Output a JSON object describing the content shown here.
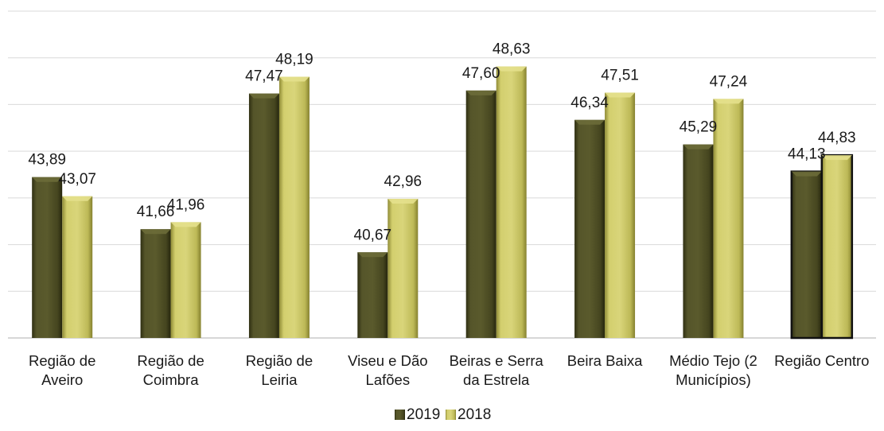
{
  "chart_data": {
    "type": "bar",
    "categories": [
      [
        "Região de",
        "Aveiro"
      ],
      [
        "Região de",
        "Coimbra"
      ],
      [
        "Região de",
        "Leiria"
      ],
      [
        "Viseu e Dão",
        "Lafões"
      ],
      [
        "Beiras e Serra",
        "da Estrela"
      ],
      [
        "Beira Baixa"
      ],
      [
        "Médio Tejo (2",
        "Municípios)"
      ],
      [
        "Região Centro"
      ]
    ],
    "series": [
      {
        "name": "2019",
        "values": [
          43.89,
          41.66,
          47.47,
          40.67,
          47.6,
          46.34,
          45.29,
          44.13
        ],
        "labels": [
          "43,89",
          "41,66",
          "47,47",
          "40,67",
          "47,60",
          "46,34",
          "45,29",
          "44,13"
        ],
        "color": "#4a4a22"
      },
      {
        "name": "2018",
        "values": [
          43.07,
          41.96,
          48.19,
          42.96,
          48.63,
          47.51,
          47.24,
          44.83
        ],
        "labels": [
          "43,07",
          "41,96",
          "48,19",
          "42,96",
          "48,63",
          "47,51",
          "47,24",
          "44,83"
        ],
        "color": "#c8c463"
      }
    ],
    "ylim": [
      37,
      51
    ],
    "grid": true,
    "legend_position": "bottom",
    "highlighted_category": 7
  }
}
